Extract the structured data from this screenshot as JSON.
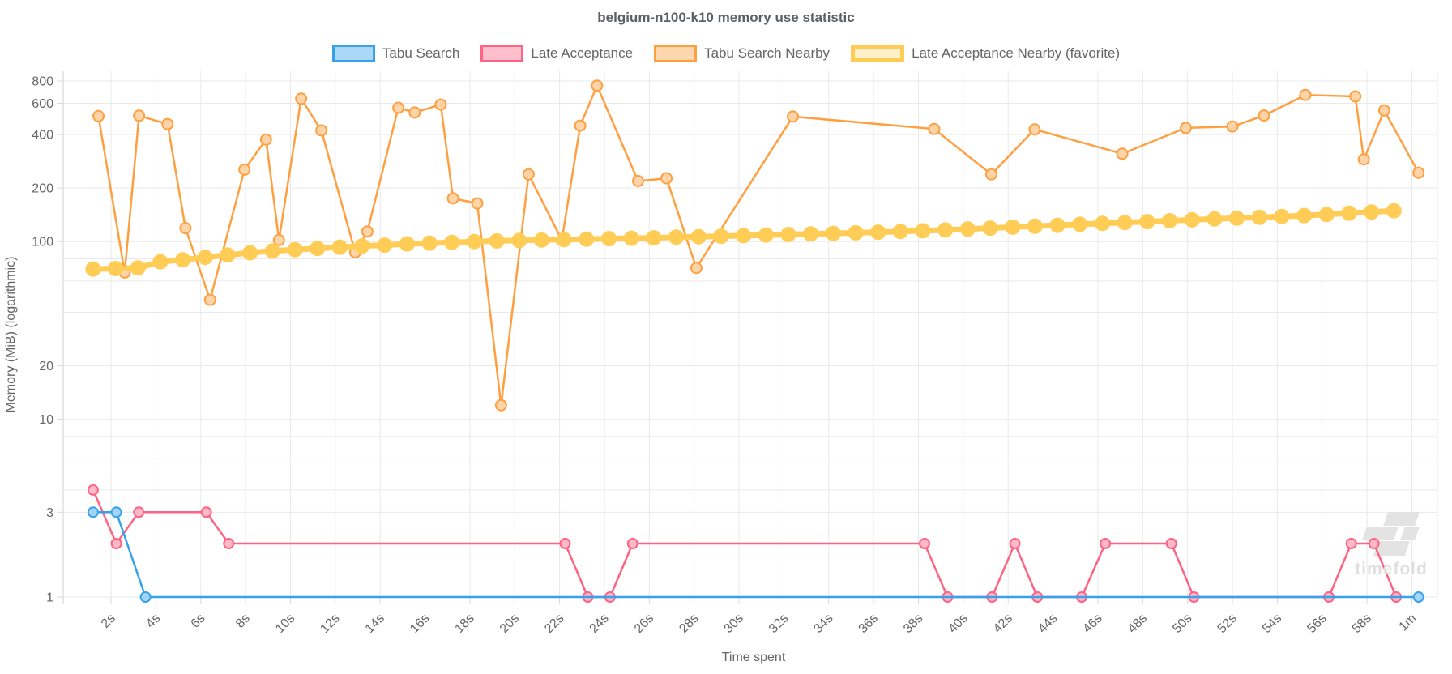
{
  "title": "belgium-n100-k10 memory use statistic",
  "watermark": {
    "text": "timefold"
  },
  "chart_data": {
    "type": "line",
    "title": "belgium-n100-k10 memory use statistic",
    "xlabel": "Time spent",
    "ylabel": "Memory (MiB) (logarithmic)",
    "y_scale": "log",
    "x_unit": "seconds",
    "ylim": [
      1,
      908
    ],
    "xlim": [
      -0.2,
      61.3
    ],
    "grid": true,
    "legend_position": "top",
    "x_ticks": [
      [
        2,
        "2s"
      ],
      [
        4,
        "4s"
      ],
      [
        6,
        "6s"
      ],
      [
        8,
        "8s"
      ],
      [
        10,
        "10s"
      ],
      [
        12,
        "12s"
      ],
      [
        14,
        "14s"
      ],
      [
        16,
        "16s"
      ],
      [
        18,
        "18s"
      ],
      [
        20,
        "20s"
      ],
      [
        22,
        "22s"
      ],
      [
        24,
        "24s"
      ],
      [
        26,
        "26s"
      ],
      [
        28,
        "28s"
      ],
      [
        30,
        "30s"
      ],
      [
        32,
        "32s"
      ],
      [
        34,
        "34s"
      ],
      [
        36,
        "36s"
      ],
      [
        38,
        "38s"
      ],
      [
        40,
        "40s"
      ],
      [
        42,
        "42s"
      ],
      [
        44,
        "44s"
      ],
      [
        46,
        "46s"
      ],
      [
        48,
        "48s"
      ],
      [
        50,
        "50s"
      ],
      [
        52,
        "52s"
      ],
      [
        54,
        "54s"
      ],
      [
        56,
        "56s"
      ],
      [
        58,
        "58s"
      ],
      [
        60,
        "1m"
      ]
    ],
    "y_ticks": [
      [
        800,
        "800"
      ],
      [
        600,
        "600"
      ],
      [
        400,
        "400"
      ],
      [
        200,
        "200"
      ],
      [
        100,
        "100"
      ],
      [
        20,
        "20"
      ],
      [
        10,
        "10"
      ],
      [
        3,
        "3"
      ],
      [
        1,
        "1"
      ]
    ],
    "y_minor_gridlines": [
      80,
      60,
      40,
      8,
      6,
      4
    ],
    "series": [
      {
        "name": "Tabu Search",
        "color": "#36A2EB",
        "point_fill": "#A4D5F6",
        "swatch_fill": "#ABD8F7",
        "line_width": 2.5,
        "point_radius": 6,
        "favorite": false,
        "points": [
          [
            1.2,
            3
          ],
          [
            2.24,
            3
          ],
          [
            3.54,
            1
          ],
          [
            60.3,
            1
          ]
        ]
      },
      {
        "name": "Late Acceptance",
        "color": "#FF6384",
        "point_fill": "#FFB9C8",
        "swatch_fill": "#FFBECB",
        "line_width": 2.5,
        "point_radius": 6,
        "favorite": false,
        "points": [
          [
            1.2,
            4
          ],
          [
            2.24,
            2
          ],
          [
            3.24,
            3
          ],
          [
            6.25,
            3
          ],
          [
            7.25,
            2
          ],
          [
            22.25,
            2
          ],
          [
            23.26,
            1
          ],
          [
            24.25,
            1
          ],
          [
            25.26,
            2
          ],
          [
            38.27,
            2
          ],
          [
            39.3,
            1
          ],
          [
            41.28,
            1
          ],
          [
            42.3,
            2
          ],
          [
            43.3,
            1
          ],
          [
            45.28,
            1
          ],
          [
            46.33,
            2
          ],
          [
            49.28,
            2
          ],
          [
            50.28,
            1
          ],
          [
            56.3,
            1
          ],
          [
            57.3,
            2
          ],
          [
            58.31,
            2
          ],
          [
            59.3,
            1
          ]
        ]
      },
      {
        "name": "Tabu Search Nearby",
        "color": "#FF9F40",
        "point_fill": "#FFD4A9",
        "swatch_fill": "#FFD7AF",
        "line_width": 2.5,
        "point_radius": 6.5,
        "favorite": false,
        "points": [
          [
            1.44,
            508
          ],
          [
            2.61,
            67
          ],
          [
            3.25,
            511
          ],
          [
            4.52,
            458
          ],
          [
            5.32,
            119
          ],
          [
            6.42,
            47
          ],
          [
            7.95,
            254
          ],
          [
            8.91,
            375
          ],
          [
            9.49,
            102
          ],
          [
            10.48,
            637
          ],
          [
            11.38,
            422
          ],
          [
            12.89,
            87
          ],
          [
            13.43,
            114
          ],
          [
            14.81,
            566
          ],
          [
            15.54,
            532
          ],
          [
            16.7,
            590
          ],
          [
            17.25,
            175
          ],
          [
            18.33,
            164
          ],
          [
            19.39,
            12
          ],
          [
            20.62,
            239
          ],
          [
            22.1,
            102
          ],
          [
            22.92,
            449
          ],
          [
            23.67,
            753
          ],
          [
            25.5,
            219
          ],
          [
            26.77,
            227
          ],
          [
            28.1,
            71
          ],
          [
            32.4,
            505
          ],
          [
            38.7,
            430
          ],
          [
            41.25,
            239
          ],
          [
            43.18,
            428
          ],
          [
            47.09,
            312
          ],
          [
            49.92,
            436
          ],
          [
            52,
            444
          ],
          [
            53.41,
            512
          ],
          [
            55.25,
            668
          ],
          [
            57.48,
            656
          ],
          [
            57.86,
            290
          ],
          [
            58.77,
            547
          ],
          [
            60.3,
            244
          ]
        ]
      },
      {
        "name": "Late Acceptance Nearby (favorite)",
        "color": "#FFCD56",
        "point_fill": "#FFCD56",
        "swatch_fill": "#FFF0CC",
        "line_width": 7,
        "point_radius": 8.5,
        "favorite": true,
        "points": [
          [
            1.2,
            70
          ],
          [
            2.2,
            70.5
          ],
          [
            3.2,
            71
          ],
          [
            4.2,
            77
          ],
          [
            5.2,
            79
          ],
          [
            6.2,
            81.5
          ],
          [
            7.2,
            84
          ],
          [
            8.2,
            86.5
          ],
          [
            9.2,
            88.5
          ],
          [
            10.2,
            90
          ],
          [
            11.2,
            91.5
          ],
          [
            12.2,
            93
          ],
          [
            13.2,
            94.5
          ],
          [
            14.2,
            95.5
          ],
          [
            15.2,
            97
          ],
          [
            16.2,
            98
          ],
          [
            17.2,
            99
          ],
          [
            18.2,
            100
          ],
          [
            19.2,
            100.8
          ],
          [
            20.2,
            101.5
          ],
          [
            21.2,
            102
          ],
          [
            22.2,
            102.6
          ],
          [
            23.2,
            103.2
          ],
          [
            24.2,
            103.8
          ],
          [
            25.2,
            104.4
          ],
          [
            26.2,
            105
          ],
          [
            27.2,
            105.8
          ],
          [
            28.2,
            106.5
          ],
          [
            29.2,
            107.2
          ],
          [
            30.2,
            108
          ],
          [
            31.2,
            108.8
          ],
          [
            32.2,
            109.6
          ],
          [
            33.2,
            110.4
          ],
          [
            34.2,
            111.2
          ],
          [
            35.2,
            112
          ],
          [
            36.2,
            113
          ],
          [
            37.2,
            114
          ],
          [
            38.2,
            115
          ],
          [
            39.2,
            116.2
          ],
          [
            40.2,
            117.5
          ],
          [
            41.2,
            119
          ],
          [
            42.2,
            120.5
          ],
          [
            43.2,
            122
          ],
          [
            44.2,
            123.5
          ],
          [
            45.2,
            125
          ],
          [
            46.2,
            126.5
          ],
          [
            47.2,
            128
          ],
          [
            48.2,
            129.5
          ],
          [
            49.2,
            131
          ],
          [
            50.2,
            132.5
          ],
          [
            51.2,
            134
          ],
          [
            52.2,
            135.5
          ],
          [
            53.2,
            137
          ],
          [
            54.2,
            138.5
          ],
          [
            55.2,
            140
          ],
          [
            56.2,
            142
          ],
          [
            57.2,
            144.5
          ],
          [
            58.2,
            146.5
          ],
          [
            59.2,
            149
          ]
        ]
      }
    ],
    "draw_order": [
      2,
      3,
      1,
      0
    ],
    "colors": {
      "grid": "#e9e9e9",
      "axis_spine": "#d9d9d9",
      "tick_text": "#666666",
      "title_text": "#5a6066",
      "watermark": "#e3e3e3"
    }
  }
}
